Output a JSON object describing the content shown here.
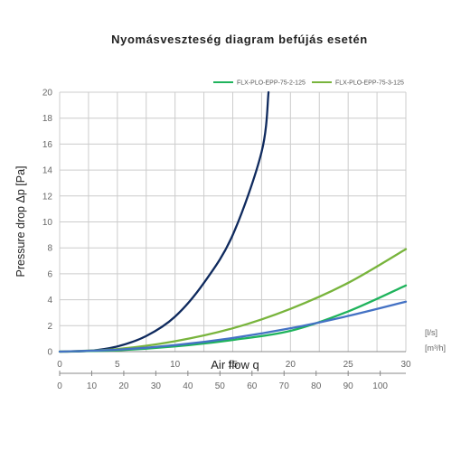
{
  "chart_data": {
    "type": "line",
    "title": "Nyomásveszteség diagram befújás esetén",
    "ylabel": "Pressure drop Δp [Pa]",
    "xlabel": "Air flow q",
    "x_primary_unit": "[l/s]",
    "x_secondary_unit": "[m³/h]",
    "xlim": [
      0,
      30
    ],
    "ylim": [
      0,
      20
    ],
    "x_ticks": [
      0,
      5,
      10,
      15,
      20,
      25,
      30
    ],
    "x_secondary_ticks": [
      0,
      10,
      20,
      30,
      40,
      50,
      60,
      70,
      80,
      90,
      100
    ],
    "y_ticks": [
      0,
      2,
      4,
      6,
      8,
      10,
      12,
      14,
      16,
      18,
      20
    ],
    "grid": true,
    "legend_position": "top-right",
    "series": [
      {
        "color": "#0f2a5e",
        "x": [
          0,
          2.5,
          5,
          7.5,
          10,
          12.5,
          15,
          17.5,
          18.1
        ],
        "y": [
          0,
          0.05,
          0.4,
          1.2,
          2.7,
          5.3,
          9.0,
          15.4,
          20
        ]
      },
      {
        "name": "FLX-PLO-EPP-75-2-125",
        "color": "#1fb35c",
        "x": [
          0,
          5,
          10,
          15,
          20,
          25,
          30
        ],
        "y": [
          0,
          0.1,
          0.4,
          0.9,
          1.6,
          3.1,
          5.1
        ]
      },
      {
        "name": "FLX-PLO-EPP-75-3-125",
        "color": "#78b43c",
        "x": [
          0,
          5,
          10,
          15,
          20,
          25,
          30
        ],
        "y": [
          0,
          0.2,
          0.8,
          1.8,
          3.3,
          5.3,
          7.9
        ]
      },
      {
        "color": "#4472c4",
        "x": [
          0,
          5,
          10,
          15,
          20,
          25,
          30
        ],
        "y": [
          0,
          0.15,
          0.5,
          1.05,
          1.8,
          2.75,
          3.85
        ]
      }
    ]
  }
}
